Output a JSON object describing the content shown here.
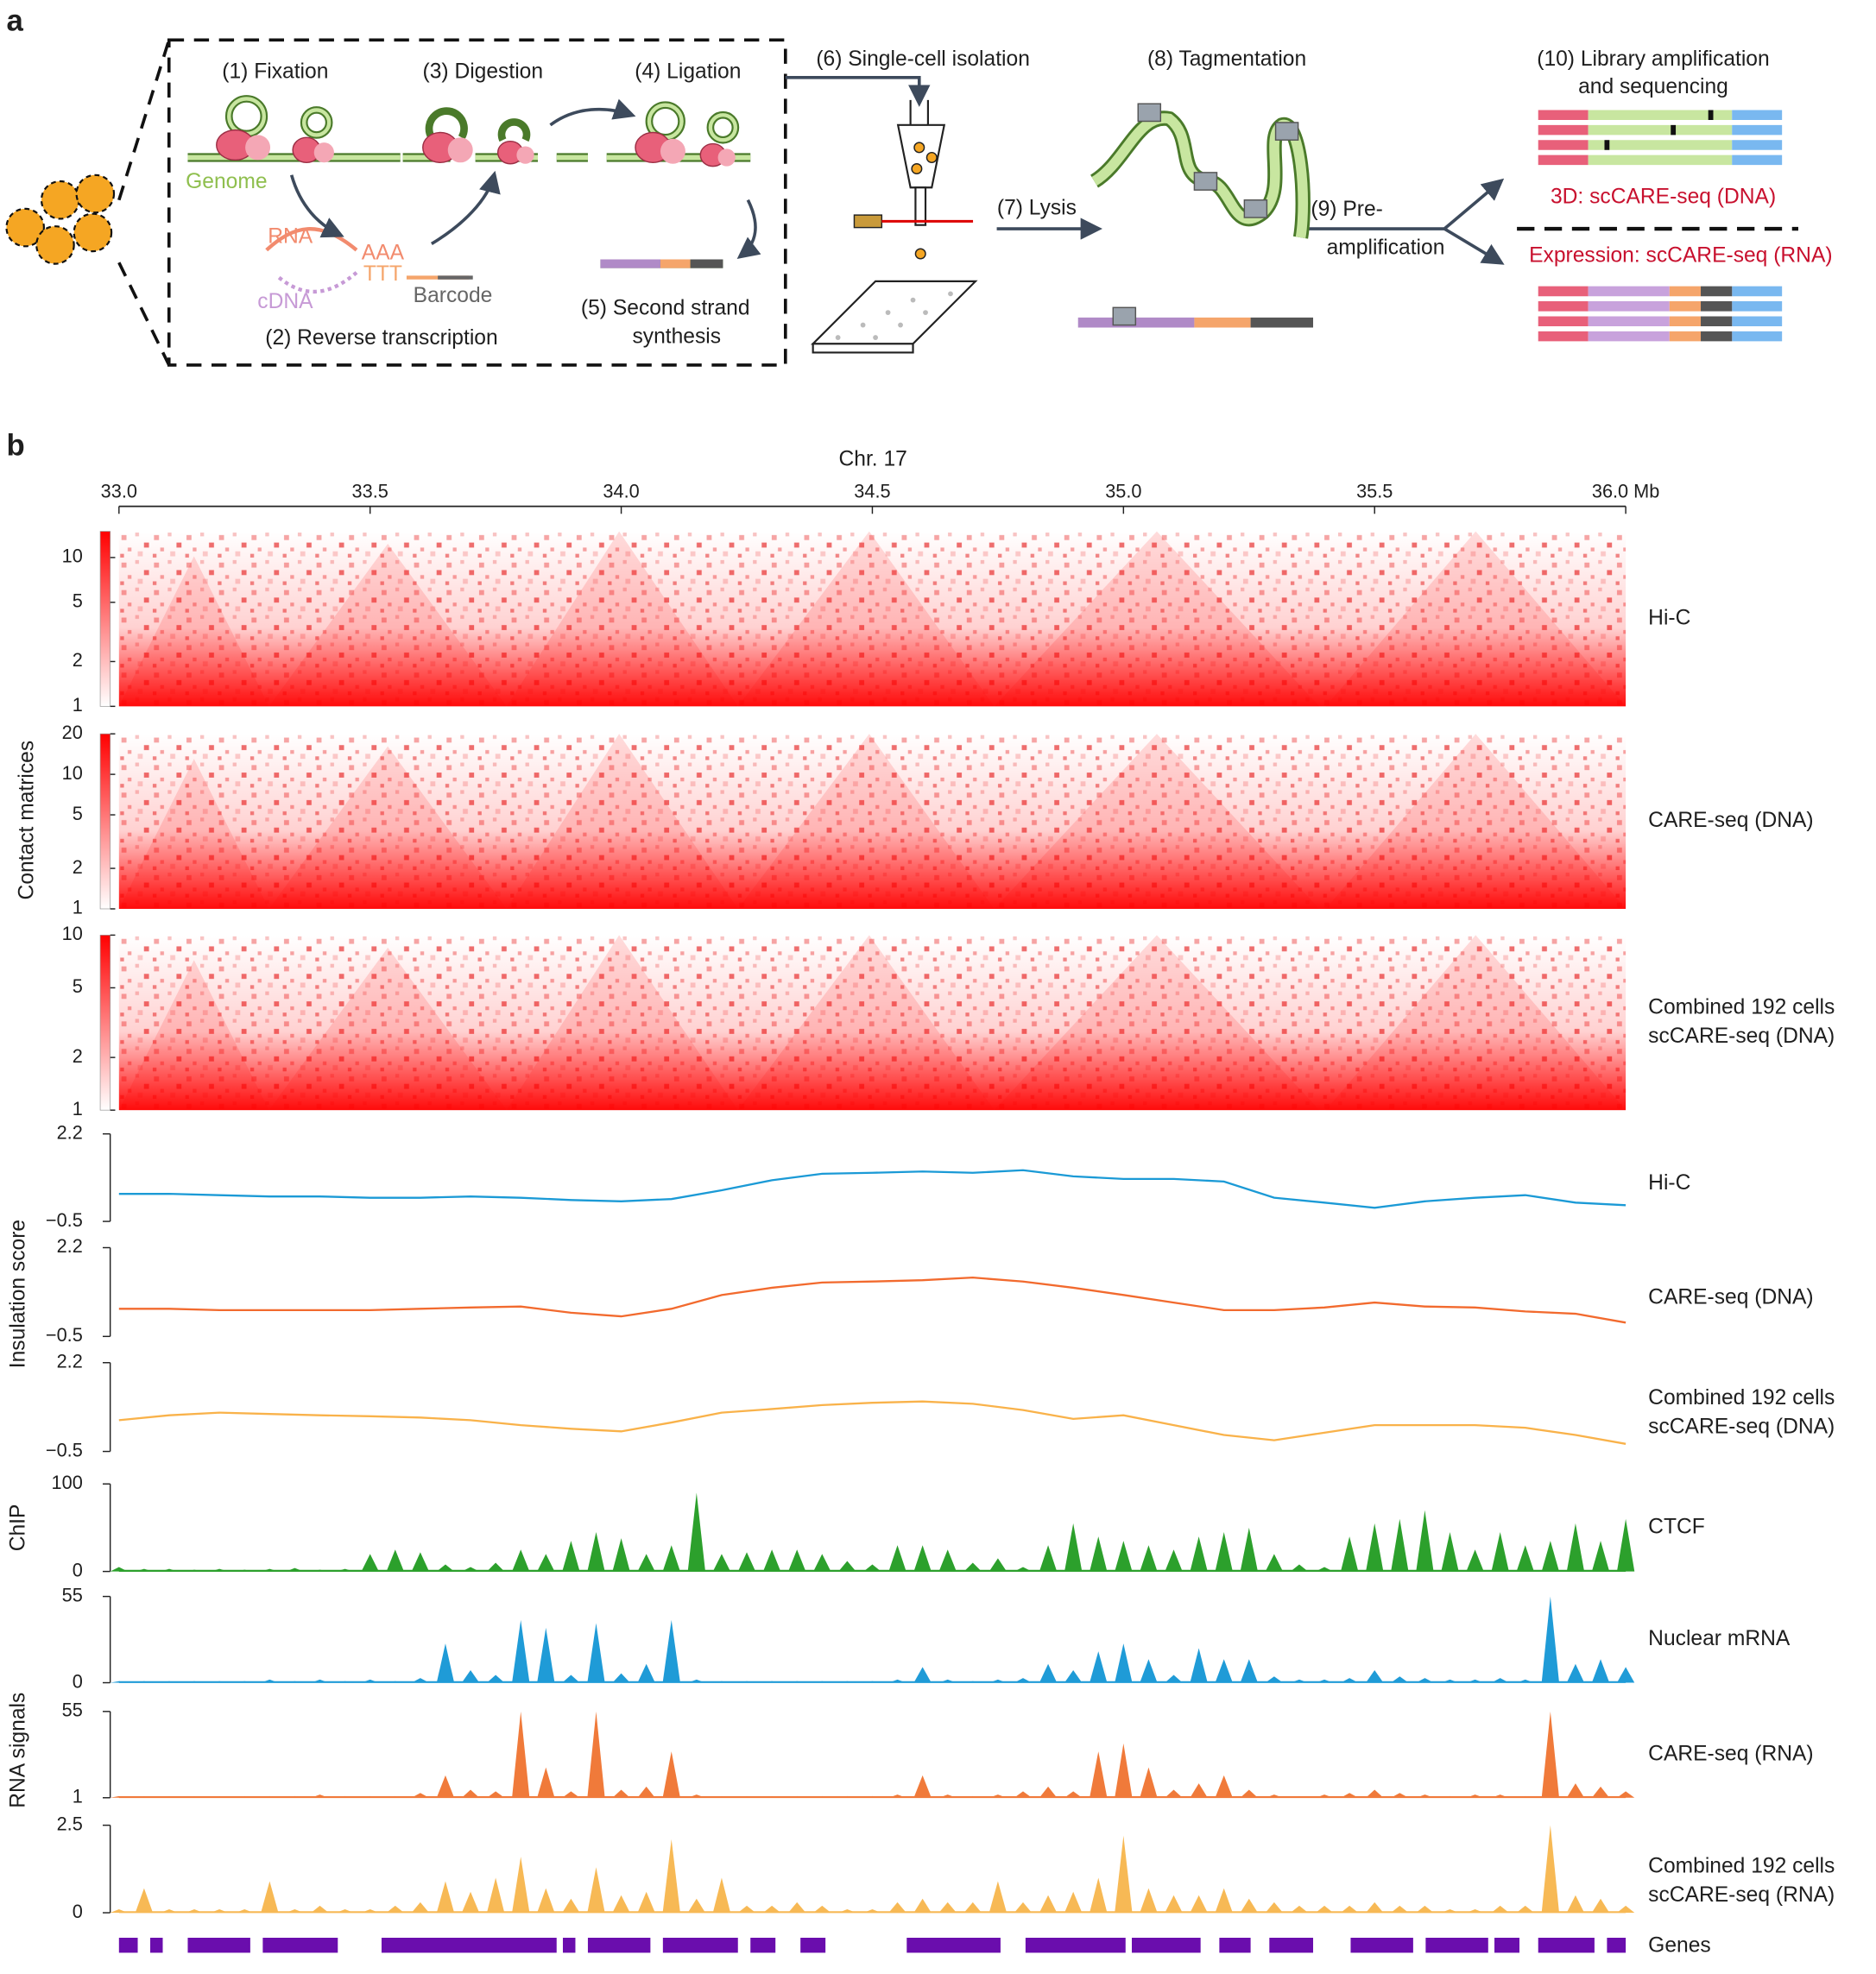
{
  "figure_labels": [
    "a",
    "b"
  ],
  "diagram": {
    "steps": [
      "(1) Fixation",
      "(2) Reverse transcription",
      "(3) Digestion",
      "(4) Ligation",
      [
        "(5) Second strand",
        "synthesis"
      ],
      "(6) Single-cell isolation",
      "(7) Lysis",
      "(8) Tagmentation",
      [
        "(9) Pre-",
        "amplification"
      ],
      [
        "(10) Library amplification",
        "and sequencing"
      ]
    ],
    "labels": {
      "genome": "Genome",
      "rna": "RNA",
      "aaa": "AAA",
      "ttt": "TTT",
      "cdna": "cDNA",
      "barcode": "Barcode"
    },
    "outputs": [
      "3D: scCARE-seq (DNA)",
      "Expression: scCARE-seq (RNA)"
    ]
  },
  "chart_data": {
    "type": "genome-tracks",
    "xlabel": "Chr. 17",
    "xlim": [
      33.0,
      36.0
    ],
    "xticks": [
      {
        "value": 33.0,
        "label": "33.0"
      },
      {
        "value": 33.5,
        "label": "33.5"
      },
      {
        "value": 34.0,
        "label": "34.0"
      },
      {
        "value": 34.5,
        "label": "34.5"
      },
      {
        "value": 35.0,
        "label": "35.0"
      },
      {
        "value": 35.5,
        "label": "35.5"
      },
      {
        "value": 36.0,
        "label": "36.0 Mb"
      }
    ],
    "group_labels": [
      "Contact matrices",
      "Insulation score",
      "ChIP",
      "RNA signals"
    ],
    "x_bins": [
      33.0,
      33.1,
      33.2,
      33.3,
      33.4,
      33.5,
      33.6,
      33.7,
      33.8,
      33.9,
      34.0,
      34.1,
      34.2,
      34.3,
      34.4,
      34.5,
      34.6,
      34.7,
      34.8,
      34.9,
      35.0,
      35.1,
      35.2,
      35.3,
      35.4,
      35.5,
      35.6,
      35.7,
      35.8,
      35.9,
      36.0
    ],
    "x_signal": [
      33.0,
      33.05,
      33.1,
      33.15,
      33.2,
      33.25,
      33.3,
      33.35,
      33.4,
      33.45,
      33.5,
      33.55,
      33.6,
      33.65,
      33.7,
      33.75,
      33.8,
      33.85,
      33.9,
      33.95,
      34.0,
      34.05,
      34.1,
      34.15,
      34.2,
      34.25,
      34.3,
      34.35,
      34.4,
      34.45,
      34.5,
      34.55,
      34.6,
      34.65,
      34.7,
      34.75,
      34.8,
      34.85,
      34.9,
      34.95,
      35.0,
      35.05,
      35.1,
      35.15,
      35.2,
      35.25,
      35.3,
      35.35,
      35.4,
      35.45,
      35.5,
      35.55,
      35.6,
      35.65,
      35.7,
      35.75,
      35.8,
      35.85,
      35.9,
      35.95,
      36.0
    ],
    "heatmaps": [
      {
        "name": [
          "Hi-C"
        ],
        "log": true,
        "clim": [
          1,
          15
        ],
        "cticks": [
          1,
          2,
          5,
          10
        ]
      },
      {
        "name": [
          "CARE-seq (DNA)"
        ],
        "log": true,
        "clim": [
          1,
          20
        ],
        "cticks": [
          1,
          2,
          5,
          10,
          20
        ]
      },
      {
        "name": [
          "Combined 192 cells",
          "scCARE-seq (DNA)"
        ],
        "log": true,
        "clim": [
          1,
          10
        ],
        "cticks": [
          1,
          2,
          5,
          10
        ]
      }
    ],
    "insulation": [
      {
        "name": [
          "Hi-C"
        ],
        "color": "#1b9ad6",
        "ylim": [
          -0.5,
          2.2
        ],
        "yticks": [
          {
            "value": -0.5,
            "label": "−0.5"
          },
          2.2
        ],
        "values": [
          0.35,
          0.35,
          0.31,
          0.27,
          0.27,
          0.23,
          0.23,
          0.27,
          0.23,
          0.16,
          0.12,
          0.19,
          0.46,
          0.77,
          0.97,
          1.0,
          1.04,
          1.0,
          1.08,
          0.89,
          0.81,
          0.81,
          0.73,
          0.23,
          0.08,
          -0.08,
          0.12,
          0.23,
          0.31,
          0.08,
          0.0
        ]
      },
      {
        "name": [
          "CARE-seq (DNA)"
        ],
        "color": "#f26a2e",
        "ylim": [
          -0.5,
          2.2
        ],
        "yticks": [
          {
            "value": -0.5,
            "label": "−0.5"
          },
          2.2
        ],
        "values": [
          0.34,
          0.34,
          0.3,
          0.3,
          0.3,
          0.3,
          0.34,
          0.38,
          0.41,
          0.22,
          0.11,
          0.34,
          0.76,
          0.98,
          1.14,
          1.17,
          1.21,
          1.29,
          1.17,
          0.98,
          0.76,
          0.53,
          0.3,
          0.3,
          0.38,
          0.53,
          0.41,
          0.38,
          0.26,
          0.19,
          -0.08
        ]
      },
      {
        "name": [
          "Combined 192 cells",
          "scCARE-seq (DNA)"
        ],
        "color": "#f9b24a",
        "ylim": [
          -0.5,
          2.2
        ],
        "yticks": [
          {
            "value": -0.5,
            "label": "−0.5"
          },
          2.2
        ],
        "values": [
          0.45,
          0.6,
          0.68,
          0.64,
          0.6,
          0.57,
          0.53,
          0.45,
          0.3,
          0.19,
          0.11,
          0.38,
          0.68,
          0.79,
          0.91,
          0.98,
          1.02,
          0.95,
          0.76,
          0.49,
          0.6,
          0.3,
          0.0,
          -0.16,
          0.07,
          0.3,
          0.3,
          0.3,
          0.22,
          0.0,
          -0.27
        ]
      }
    ],
    "signals": [
      {
        "name": [
          "CTCF"
        ],
        "color": "#2ca02c",
        "ylim": [
          0,
          100
        ],
        "yticks": [
          0,
          100
        ],
        "values": [
          5,
          3,
          3,
          2,
          3,
          2,
          3,
          4,
          2,
          3,
          20,
          25,
          22,
          8,
          5,
          10,
          25,
          20,
          35,
          45,
          38,
          20,
          30,
          90,
          20,
          22,
          25,
          25,
          20,
          12,
          8,
          30,
          30,
          25,
          10,
          15,
          5,
          30,
          55,
          40,
          35,
          30,
          25,
          40,
          45,
          50,
          20,
          8,
          5,
          40,
          55,
          60,
          70,
          45,
          25,
          45,
          30,
          35,
          55,
          35,
          60
        ]
      },
      {
        "name": [
          "Nuclear mRNA"
        ],
        "color": "#1f9bd7",
        "ylim": [
          0,
          55
        ],
        "yticks": [
          0,
          55
        ],
        "values": [
          1,
          1,
          1,
          1,
          1,
          1,
          2,
          1,
          2,
          1,
          2,
          1,
          3,
          25,
          8,
          5,
          40,
          35,
          5,
          38,
          6,
          12,
          40,
          2,
          1,
          1,
          1,
          1,
          1,
          1,
          1,
          2,
          10,
          2,
          1,
          2,
          3,
          12,
          8,
          20,
          25,
          15,
          5,
          22,
          15,
          15,
          4,
          2,
          2,
          3,
          8,
          4,
          3,
          2,
          2,
          3,
          2,
          55,
          12,
          15,
          10
        ]
      },
      {
        "name": [
          "CARE-seq (RNA)"
        ],
        "color": "#f07a3a",
        "ylim": [
          1,
          55
        ],
        "yticks": [
          1,
          55
        ],
        "values": [
          2,
          2,
          2,
          2,
          2,
          2,
          2,
          2,
          3,
          2,
          2,
          2,
          4,
          15,
          6,
          5,
          55,
          20,
          5,
          55,
          6,
          8,
          30,
          3,
          2,
          2,
          2,
          2,
          2,
          2,
          2,
          3,
          15,
          3,
          2,
          3,
          5,
          8,
          5,
          30,
          35,
          20,
          6,
          10,
          15,
          6,
          3,
          2,
          3,
          4,
          6,
          4,
          3,
          2,
          3,
          3,
          2,
          55,
          10,
          8,
          5
        ]
      },
      {
        "name": [
          "Combined 192 cells",
          "scCARE-seq (RNA)"
        ],
        "color": "#f7b955",
        "ylim": [
          0,
          2.5
        ],
        "yticks": [
          0,
          2.5
        ],
        "values": [
          0.1,
          0.7,
          0.1,
          0.1,
          0.1,
          0.1,
          0.9,
          0.1,
          0.2,
          0.1,
          0.1,
          0.2,
          0.3,
          0.9,
          0.6,
          1.0,
          1.6,
          0.7,
          0.4,
          1.3,
          0.5,
          0.6,
          2.1,
          0.4,
          1.0,
          0.2,
          0.2,
          0.3,
          0.2,
          0.1,
          0.1,
          0.3,
          0.4,
          0.3,
          0.3,
          0.9,
          0.3,
          0.5,
          0.6,
          1.0,
          2.2,
          0.7,
          0.5,
          0.5,
          0.7,
          0.4,
          0.3,
          0.2,
          0.2,
          0.2,
          0.3,
          0.2,
          0.2,
          0.1,
          0.1,
          0.2,
          0.2,
          2.5,
          0.5,
          0.4,
          0.2
        ]
      }
    ],
    "genes": {
      "name": "Genes"
    }
  }
}
